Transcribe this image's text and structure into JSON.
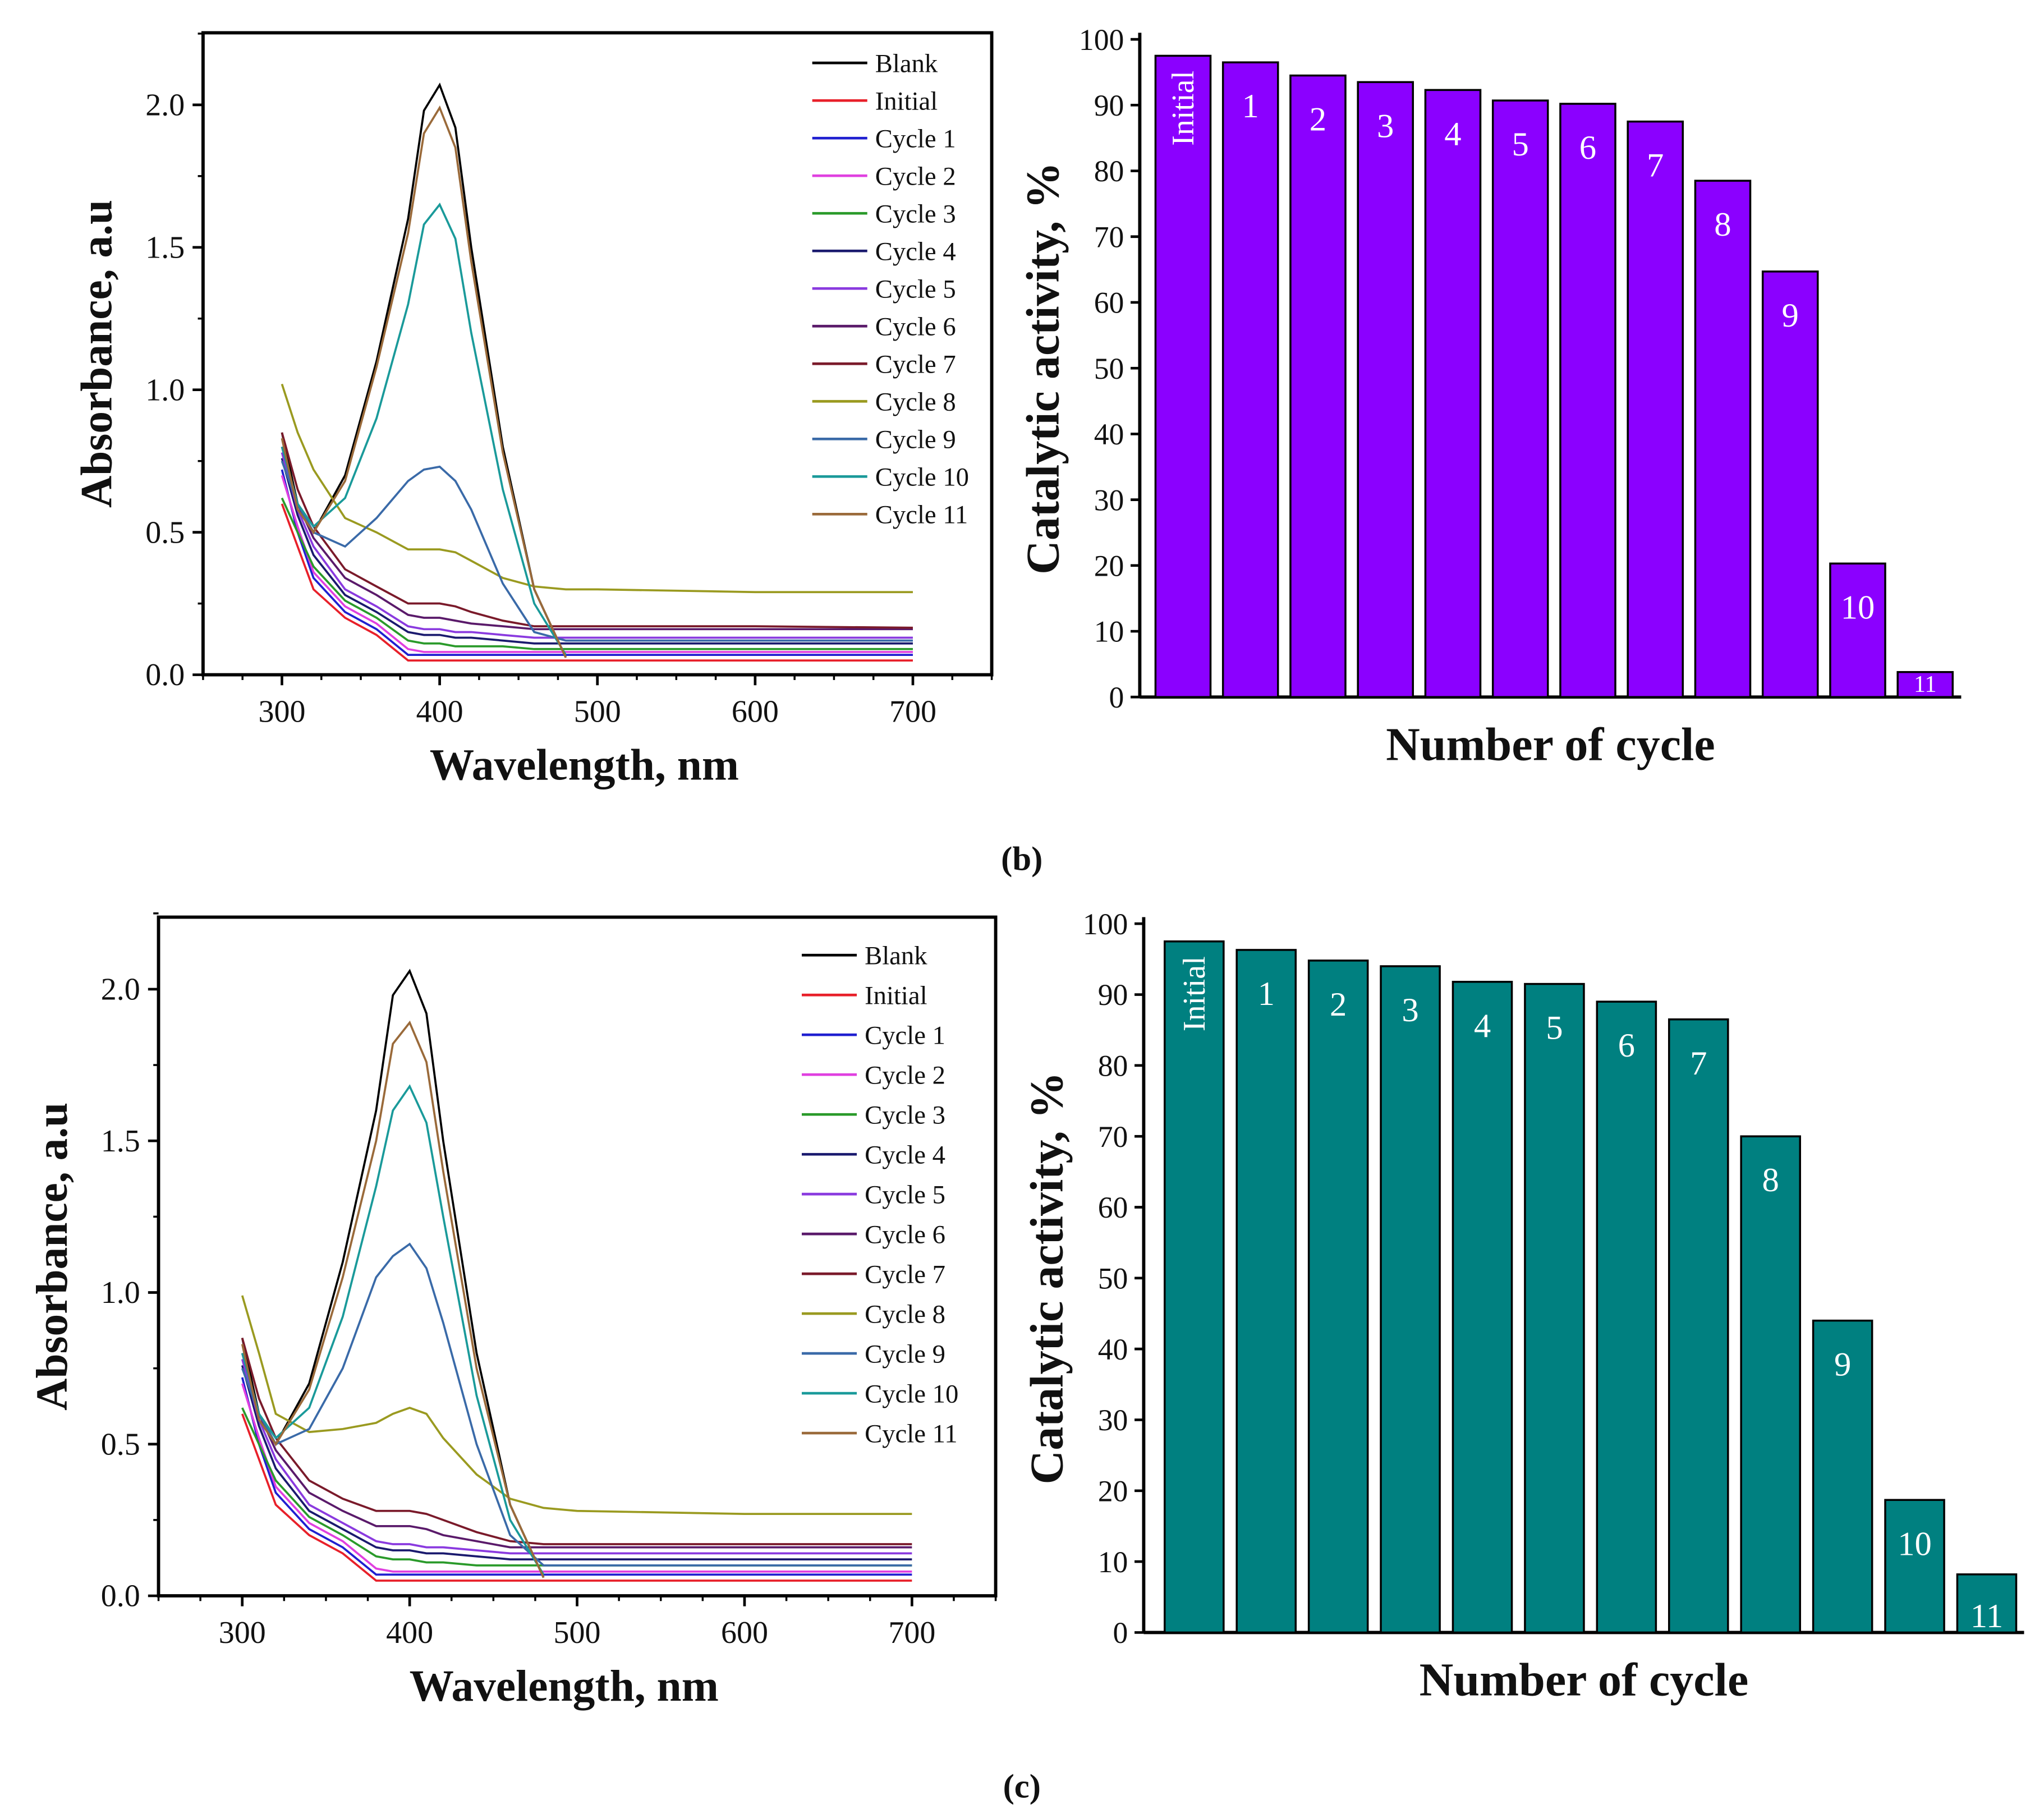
{
  "chart_data": [
    {
      "type": "line",
      "panel": "b-spectra",
      "xlabel": "Wavelength, nm",
      "ylabel": "Absorbance, a.u",
      "xlim": [
        250,
        750
      ],
      "ylim": [
        0,
        2.25
      ],
      "xticks": [
        300,
        400,
        500,
        600,
        700
      ],
      "yticks": [
        "0.0",
        "0.5",
        "1.0",
        "1.5",
        "2.0"
      ],
      "legend_position": "top-right",
      "x": [
        300,
        310,
        320,
        340,
        360,
        380,
        390,
        400,
        410,
        420,
        440,
        460,
        480,
        500,
        600,
        700
      ],
      "series": [
        {
          "name": "Blank",
          "color": "#000000",
          "values": [
            0.85,
            0.6,
            0.5,
            0.7,
            1.1,
            1.6,
            1.98,
            2.07,
            1.92,
            1.5,
            0.8,
            0.3,
            0.06,
            null,
            null,
            null
          ]
        },
        {
          "name": "Initial",
          "color": "#e8202a",
          "values": [
            0.6,
            0.45,
            0.3,
            0.2,
            0.14,
            0.05,
            0.05,
            0.05,
            0.05,
            0.05,
            0.05,
            0.05,
            0.05,
            0.05,
            0.05,
            0.05
          ]
        },
        {
          "name": "Cycle 1",
          "color": "#1f1fd0",
          "values": [
            0.72,
            0.5,
            0.34,
            0.22,
            0.16,
            0.07,
            0.07,
            0.07,
            0.07,
            0.07,
            0.07,
            0.07,
            0.07,
            0.07,
            0.07,
            0.07
          ]
        },
        {
          "name": "Cycle 2",
          "color": "#e040e0",
          "values": [
            0.7,
            0.52,
            0.36,
            0.24,
            0.18,
            0.09,
            0.08,
            0.08,
            0.08,
            0.08,
            0.08,
            0.08,
            0.08,
            0.08,
            0.08,
            0.08
          ]
        },
        {
          "name": "Cycle 3",
          "color": "#2a9a2a",
          "values": [
            0.62,
            0.5,
            0.38,
            0.26,
            0.2,
            0.12,
            0.11,
            0.11,
            0.1,
            0.1,
            0.1,
            0.09,
            0.09,
            0.09,
            0.09,
            0.09
          ]
        },
        {
          "name": "Cycle 4",
          "color": "#1a1a6e",
          "values": [
            0.76,
            0.56,
            0.42,
            0.28,
            0.22,
            0.15,
            0.14,
            0.14,
            0.13,
            0.13,
            0.12,
            0.11,
            0.11,
            0.11,
            0.11,
            0.11
          ]
        },
        {
          "name": "Cycle 5",
          "color": "#8a3adf",
          "values": [
            0.78,
            0.58,
            0.45,
            0.3,
            0.24,
            0.17,
            0.16,
            0.16,
            0.15,
            0.15,
            0.14,
            0.13,
            0.13,
            0.13,
            0.13,
            0.13
          ]
        },
        {
          "name": "Cycle 6",
          "color": "#5a1a6a",
          "values": [
            0.8,
            0.6,
            0.48,
            0.34,
            0.28,
            0.21,
            0.2,
            0.2,
            0.19,
            0.18,
            0.17,
            0.16,
            0.16,
            0.16,
            0.16,
            0.16
          ]
        },
        {
          "name": "Cycle 7",
          "color": "#7a1a2a",
          "values": [
            0.85,
            0.65,
            0.52,
            0.37,
            0.31,
            0.25,
            0.25,
            0.25,
            0.24,
            0.22,
            0.19,
            0.17,
            0.17,
            0.17,
            0.17,
            0.165
          ]
        },
        {
          "name": "Cycle 8",
          "color": "#9a9a20",
          "values": [
            1.02,
            0.85,
            0.72,
            0.55,
            0.5,
            0.44,
            0.44,
            0.44,
            0.43,
            0.4,
            0.34,
            0.31,
            0.3,
            0.3,
            0.29,
            0.29
          ]
        },
        {
          "name": "Cycle 9",
          "color": "#3a6aa8",
          "values": [
            0.75,
            0.6,
            0.5,
            0.45,
            0.55,
            0.68,
            0.72,
            0.73,
            0.68,
            0.58,
            0.32,
            0.15,
            0.12,
            0.12,
            0.12,
            0.12
          ]
        },
        {
          "name": "Cycle 10",
          "color": "#1a9a9a",
          "values": [
            0.8,
            0.6,
            0.52,
            0.62,
            0.9,
            1.3,
            1.58,
            1.65,
            1.53,
            1.2,
            0.65,
            0.25,
            0.07,
            null,
            null,
            null
          ]
        },
        {
          "name": "Cycle 11",
          "color": "#9a6a3a",
          "values": [
            0.83,
            0.58,
            0.5,
            0.68,
            1.08,
            1.55,
            1.9,
            1.99,
            1.85,
            1.45,
            0.78,
            0.3,
            0.06,
            null,
            null,
            null
          ]
        }
      ]
    },
    {
      "type": "bar",
      "panel": "b-activity",
      "xlabel": "Number of cycle",
      "ylabel": "Catalytic activity, %",
      "ylim": [
        0,
        100
      ],
      "yticks": [
        0,
        10,
        20,
        30,
        40,
        50,
        60,
        70,
        80,
        90,
        100
      ],
      "color": "#8b00ff",
      "categories": [
        "Initial",
        "1",
        "2",
        "3",
        "4",
        "5",
        "6",
        "7",
        "8",
        "9",
        "10",
        "11"
      ],
      "values": [
        97.5,
        96.5,
        94.5,
        93.5,
        92.3,
        90.7,
        90.2,
        87.5,
        78.5,
        64.7,
        20.3,
        3.8
      ]
    },
    {
      "type": "line",
      "panel": "c-spectra",
      "xlabel": "Wavelength, nm",
      "ylabel": "Absorbance, a.u",
      "xlim": [
        250,
        750
      ],
      "ylim": [
        0,
        2.25
      ],
      "xticks": [
        300,
        400,
        500,
        600,
        700
      ],
      "yticks": [
        "0.0",
        "0.5",
        "1.0",
        "1.5",
        "2.0"
      ],
      "legend_position": "top-right",
      "x": [
        300,
        310,
        320,
        340,
        360,
        380,
        390,
        400,
        410,
        420,
        440,
        460,
        480,
        500,
        600,
        700
      ],
      "series": [
        {
          "name": "Blank",
          "color": "#000000",
          "values": [
            0.85,
            0.6,
            0.5,
            0.7,
            1.1,
            1.6,
            1.98,
            2.06,
            1.92,
            1.5,
            0.8,
            0.3,
            0.06,
            null,
            null,
            null
          ]
        },
        {
          "name": "Initial",
          "color": "#e8202a",
          "values": [
            0.6,
            0.45,
            0.3,
            0.2,
            0.14,
            0.05,
            0.05,
            0.05,
            0.05,
            0.05,
            0.05,
            0.05,
            0.05,
            0.05,
            0.05,
            0.05
          ]
        },
        {
          "name": "Cycle 1",
          "color": "#1f1fd0",
          "values": [
            0.72,
            0.5,
            0.34,
            0.22,
            0.16,
            0.07,
            0.07,
            0.07,
            0.07,
            0.07,
            0.07,
            0.07,
            0.07,
            0.07,
            0.07,
            0.07
          ]
        },
        {
          "name": "Cycle 2",
          "color": "#e040e0",
          "values": [
            0.7,
            0.52,
            0.36,
            0.24,
            0.18,
            0.09,
            0.08,
            0.08,
            0.08,
            0.08,
            0.08,
            0.08,
            0.08,
            0.08,
            0.08,
            0.08
          ]
        },
        {
          "name": "Cycle 3",
          "color": "#2a9a2a",
          "values": [
            0.62,
            0.5,
            0.38,
            0.26,
            0.2,
            0.13,
            0.12,
            0.12,
            0.11,
            0.11,
            0.1,
            0.1,
            0.1,
            0.1,
            0.1,
            0.1
          ]
        },
        {
          "name": "Cycle 4",
          "color": "#1a1a6e",
          "values": [
            0.76,
            0.56,
            0.42,
            0.28,
            0.22,
            0.16,
            0.15,
            0.15,
            0.14,
            0.14,
            0.13,
            0.12,
            0.12,
            0.12,
            0.12,
            0.12
          ]
        },
        {
          "name": "Cycle 5",
          "color": "#8a3adf",
          "values": [
            0.78,
            0.58,
            0.45,
            0.3,
            0.24,
            0.18,
            0.17,
            0.17,
            0.16,
            0.16,
            0.15,
            0.14,
            0.14,
            0.14,
            0.14,
            0.14
          ]
        },
        {
          "name": "Cycle 6",
          "color": "#5a1a6a",
          "values": [
            0.8,
            0.6,
            0.48,
            0.34,
            0.28,
            0.23,
            0.23,
            0.23,
            0.22,
            0.2,
            0.18,
            0.16,
            0.16,
            0.16,
            0.16,
            0.16
          ]
        },
        {
          "name": "Cycle 7",
          "color": "#7a1a2a",
          "values": [
            0.85,
            0.65,
            0.52,
            0.38,
            0.32,
            0.28,
            0.28,
            0.28,
            0.27,
            0.25,
            0.21,
            0.18,
            0.17,
            0.17,
            0.17,
            0.17
          ]
        },
        {
          "name": "Cycle 8",
          "color": "#9a9a20",
          "values": [
            0.99,
            0.8,
            0.6,
            0.54,
            0.55,
            0.57,
            0.6,
            0.62,
            0.6,
            0.52,
            0.4,
            0.32,
            0.29,
            0.28,
            0.27,
            0.27
          ]
        },
        {
          "name": "Cycle 9",
          "color": "#3a6aa8",
          "values": [
            0.75,
            0.6,
            0.5,
            0.55,
            0.75,
            1.05,
            1.12,
            1.16,
            1.08,
            0.9,
            0.5,
            0.2,
            0.1,
            0.1,
            0.1,
            0.1
          ]
        },
        {
          "name": "Cycle 10",
          "color": "#1a9a9a",
          "values": [
            0.8,
            0.6,
            0.52,
            0.62,
            0.92,
            1.35,
            1.6,
            1.68,
            1.56,
            1.25,
            0.66,
            0.25,
            0.07,
            null,
            null,
            null
          ]
        },
        {
          "name": "Cycle 11",
          "color": "#9a6a3a",
          "values": [
            0.83,
            0.58,
            0.5,
            0.68,
            1.05,
            1.5,
            1.82,
            1.89,
            1.76,
            1.4,
            0.75,
            0.3,
            0.06,
            null,
            null,
            null
          ]
        }
      ]
    },
    {
      "type": "bar",
      "panel": "c-activity",
      "xlabel": "Number of cycle",
      "ylabel": "Catalytic activity, %",
      "ylim": [
        0,
        100
      ],
      "yticks": [
        0,
        10,
        20,
        30,
        40,
        50,
        60,
        70,
        80,
        90,
        100
      ],
      "color": "#008080",
      "categories": [
        "Initial",
        "1",
        "2",
        "3",
        "4",
        "5",
        "6",
        "7",
        "8",
        "9",
        "10",
        "11"
      ],
      "values": [
        97.5,
        96.3,
        94.8,
        94.0,
        91.8,
        91.5,
        89.0,
        86.5,
        70.0,
        44.0,
        18.7,
        8.2
      ]
    }
  ],
  "captions": {
    "b": "(b)",
    "c": "(c)"
  }
}
